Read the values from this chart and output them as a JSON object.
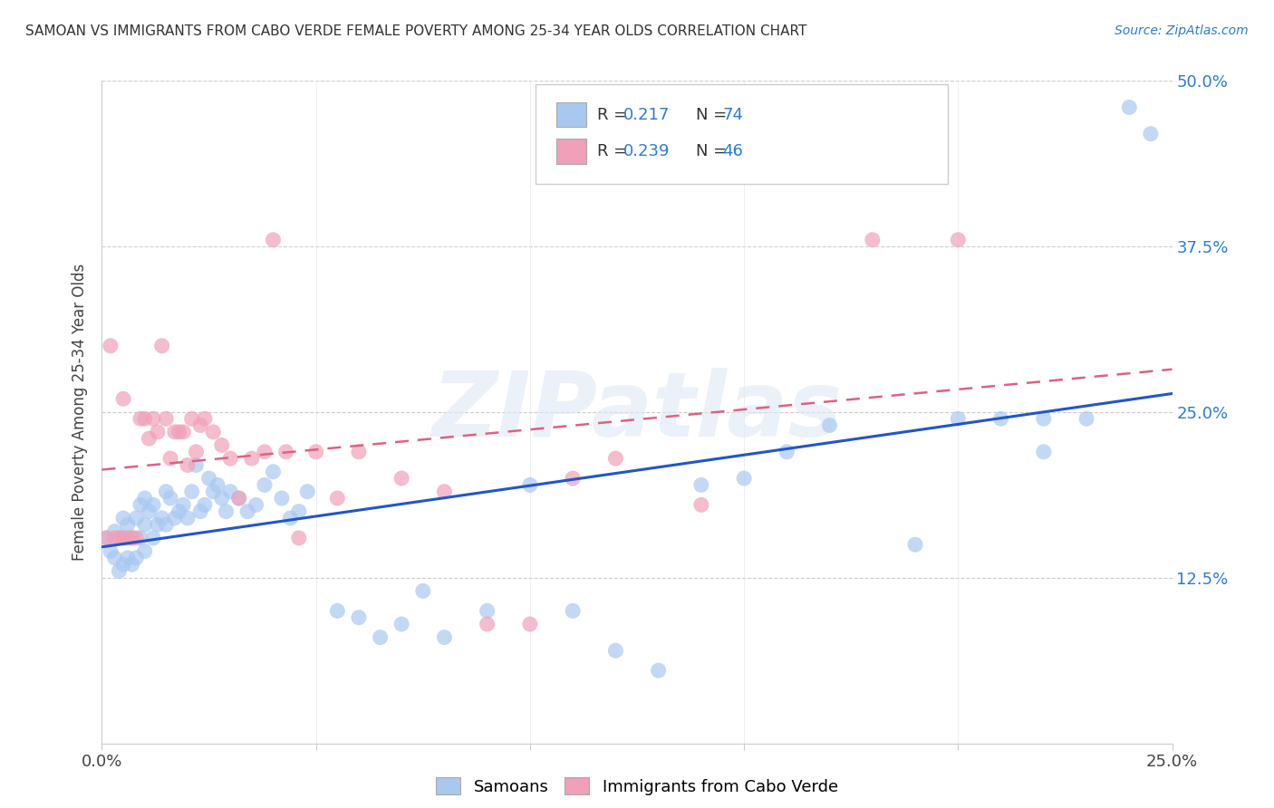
{
  "title": "SAMOAN VS IMMIGRANTS FROM CABO VERDE FEMALE POVERTY AMONG 25-34 YEAR OLDS CORRELATION CHART",
  "source": "Source: ZipAtlas.com",
  "ylabel": "Female Poverty Among 25-34 Year Olds",
  "xmin": 0.0,
  "xmax": 0.25,
  "ymin": 0.0,
  "ymax": 0.5,
  "samoan_color": "#a8c8f0",
  "cabo_verde_color": "#f0a0b8",
  "samoan_line_color": "#2255cc",
  "cabo_line_color": "#e06080",
  "samoan_R": 0.217,
  "samoan_N": 74,
  "cabo_verde_R": 0.239,
  "cabo_verde_N": 46,
  "legend_label_samoan": "Samoans",
  "legend_label_cabo": "Immigrants from Cabo Verde",
  "watermark": "ZIPatlas",
  "right_tick_color": "#2b7cd3",
  "samoan_x": [
    0.001,
    0.002,
    0.003,
    0.003,
    0.004,
    0.004,
    0.005,
    0.005,
    0.005,
    0.006,
    0.006,
    0.007,
    0.007,
    0.008,
    0.008,
    0.009,
    0.009,
    0.01,
    0.01,
    0.01,
    0.011,
    0.012,
    0.012,
    0.013,
    0.014,
    0.015,
    0.015,
    0.016,
    0.017,
    0.018,
    0.019,
    0.02,
    0.021,
    0.022,
    0.023,
    0.024,
    0.025,
    0.026,
    0.027,
    0.028,
    0.029,
    0.03,
    0.032,
    0.034,
    0.036,
    0.038,
    0.04,
    0.042,
    0.044,
    0.046,
    0.048,
    0.055,
    0.06,
    0.065,
    0.07,
    0.075,
    0.08,
    0.09,
    0.1,
    0.11,
    0.12,
    0.13,
    0.14,
    0.15,
    0.16,
    0.17,
    0.19,
    0.2,
    0.21,
    0.22,
    0.22,
    0.23,
    0.24,
    0.245
  ],
  "samoan_y": [
    0.155,
    0.145,
    0.16,
    0.14,
    0.155,
    0.13,
    0.17,
    0.155,
    0.135,
    0.165,
    0.14,
    0.155,
    0.135,
    0.14,
    0.17,
    0.18,
    0.155,
    0.185,
    0.165,
    0.145,
    0.175,
    0.18,
    0.155,
    0.165,
    0.17,
    0.19,
    0.165,
    0.185,
    0.17,
    0.175,
    0.18,
    0.17,
    0.19,
    0.21,
    0.175,
    0.18,
    0.2,
    0.19,
    0.195,
    0.185,
    0.175,
    0.19,
    0.185,
    0.175,
    0.18,
    0.195,
    0.205,
    0.185,
    0.17,
    0.175,
    0.19,
    0.1,
    0.095,
    0.08,
    0.09,
    0.115,
    0.08,
    0.1,
    0.195,
    0.1,
    0.07,
    0.055,
    0.195,
    0.2,
    0.22,
    0.24,
    0.15,
    0.245,
    0.245,
    0.22,
    0.245,
    0.245,
    0.48,
    0.46
  ],
  "cabo_verde_x": [
    0.001,
    0.002,
    0.003,
    0.004,
    0.005,
    0.005,
    0.006,
    0.007,
    0.008,
    0.009,
    0.01,
    0.011,
    0.012,
    0.013,
    0.014,
    0.015,
    0.016,
    0.017,
    0.018,
    0.019,
    0.02,
    0.021,
    0.022,
    0.023,
    0.024,
    0.026,
    0.028,
    0.03,
    0.032,
    0.035,
    0.038,
    0.04,
    0.043,
    0.046,
    0.05,
    0.055,
    0.06,
    0.07,
    0.08,
    0.09,
    0.1,
    0.11,
    0.12,
    0.14,
    0.18,
    0.2
  ],
  "cabo_verde_y": [
    0.155,
    0.3,
    0.155,
    0.155,
    0.155,
    0.26,
    0.155,
    0.155,
    0.155,
    0.245,
    0.245,
    0.23,
    0.245,
    0.235,
    0.3,
    0.245,
    0.215,
    0.235,
    0.235,
    0.235,
    0.21,
    0.245,
    0.22,
    0.24,
    0.245,
    0.235,
    0.225,
    0.215,
    0.185,
    0.215,
    0.22,
    0.38,
    0.22,
    0.155,
    0.22,
    0.185,
    0.22,
    0.2,
    0.19,
    0.09,
    0.09,
    0.2,
    0.215,
    0.18,
    0.38,
    0.38
  ]
}
